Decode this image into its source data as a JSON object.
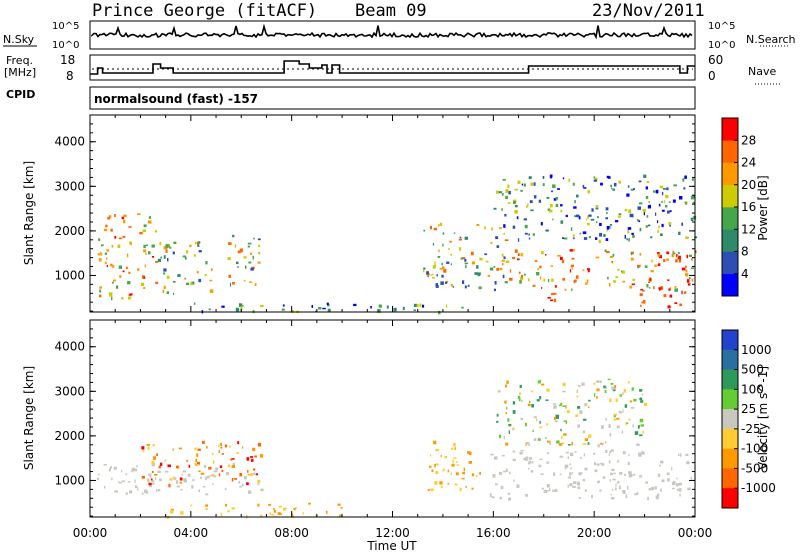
{
  "header": {
    "station": "Prince George (fitACF)",
    "beam": "Beam 09",
    "date": "23/Nov/2011"
  },
  "top_panels": {
    "nsky_label": "N.Sky",
    "nsky_ticks": [
      "10^5",
      "10^0"
    ],
    "nsearch_label": "N.Search",
    "nsearch_ticks": [
      "10^5",
      "10^0"
    ],
    "freq_label_1": "Freq.",
    "freq_label_2": "[MHz]",
    "freq_ticks": [
      "18",
      "8"
    ],
    "nave_label": "Nave",
    "nave_ticks": [
      "60",
      "0"
    ],
    "cpid_label": "CPID",
    "cpid_text": "normalsound (fast) -157"
  },
  "colors": {
    "power_scale": [
      "#0000ff",
      "#2d4fb3",
      "#2f8a6a",
      "#46a64a",
      "#cccc00",
      "#ff9900",
      "#ff6600",
      "#ff0000"
    ],
    "velocity_scale": [
      "#2244cc",
      "#2a6fa0",
      "#2d9a5a",
      "#66cc33",
      "#c8c8c0",
      "#ffcc33",
      "#ff9900",
      "#ff6600",
      "#ff0000"
    ],
    "ground_scatter": "#c8c8c0"
  },
  "chart_data": [
    {
      "type": "heatmap",
      "name": "power",
      "ylabel": "Slant Range [km]",
      "xlabel": "Time UT",
      "x_ticks": [
        "00:00",
        "04:00",
        "08:00",
        "12:00",
        "16:00",
        "20:00",
        "00:00"
      ],
      "xlim_hours": [
        0,
        24
      ],
      "y_ticks": [
        1000,
        2000,
        3000,
        4000
      ],
      "ylim": [
        180,
        4600
      ],
      "colorbar_label": "Power [dB]",
      "colorbar_ticks": [
        4,
        8,
        12,
        16,
        20,
        24,
        28
      ],
      "regions": [
        {
          "t0": 0.3,
          "t1": 2.6,
          "r0": 500,
          "r1": 2400,
          "level": "high"
        },
        {
          "t0": 2.6,
          "t1": 4.8,
          "r0": 600,
          "r1": 1800,
          "level": "mid"
        },
        {
          "t0": 5.4,
          "t1": 6.8,
          "r0": 800,
          "r1": 2000,
          "level": "mid"
        },
        {
          "t0": 13.2,
          "t1": 16.5,
          "r0": 700,
          "r1": 2200,
          "level": "mid"
        },
        {
          "t0": 16.5,
          "t1": 24.0,
          "r0": 700,
          "r1": 1600,
          "level": "high"
        },
        {
          "t0": 17.8,
          "t1": 18.5,
          "r0": 200,
          "r1": 800,
          "level": "max"
        },
        {
          "t0": 21.8,
          "t1": 23.6,
          "r0": 250,
          "r1": 800,
          "level": "max"
        },
        {
          "t0": 16.0,
          "t1": 24.0,
          "r0": 1800,
          "r1": 3300,
          "level": "low"
        },
        {
          "t0": 4.0,
          "t1": 15.0,
          "r0": 200,
          "r1": 400,
          "level": "low"
        }
      ]
    },
    {
      "type": "heatmap",
      "name": "velocity",
      "ylabel": "Slant Range [km]",
      "xlabel": "Time UT",
      "x_ticks": [
        "00:00",
        "04:00",
        "08:00",
        "12:00",
        "16:00",
        "20:00",
        "00:00"
      ],
      "xlim_hours": [
        0,
        24
      ],
      "y_ticks": [
        1000,
        2000,
        3000,
        4000
      ],
      "ylim": [
        180,
        4600
      ],
      "colorbar_label": "Velocity [m s^-1]",
      "colorbar_ticks": [
        1000,
        500,
        100,
        25,
        -25,
        -100,
        -500,
        -1000
      ],
      "regions": [
        {
          "t0": 0.2,
          "t1": 6.8,
          "r0": 700,
          "r1": 1400,
          "level": "ground"
        },
        {
          "t0": 2.0,
          "t1": 6.8,
          "r0": 900,
          "r1": 1900,
          "level": "neg"
        },
        {
          "t0": 3.0,
          "t1": 10.0,
          "r0": 200,
          "r1": 500,
          "level": "negsmall"
        },
        {
          "t0": 13.3,
          "t1": 15.6,
          "r0": 800,
          "r1": 1900,
          "level": "negsmall"
        },
        {
          "t0": 15.8,
          "t1": 24.0,
          "r0": 600,
          "r1": 1700,
          "level": "ground"
        },
        {
          "t0": 16.0,
          "t1": 22.0,
          "r0": 1800,
          "r1": 3300,
          "level": "mixed"
        }
      ]
    }
  ]
}
